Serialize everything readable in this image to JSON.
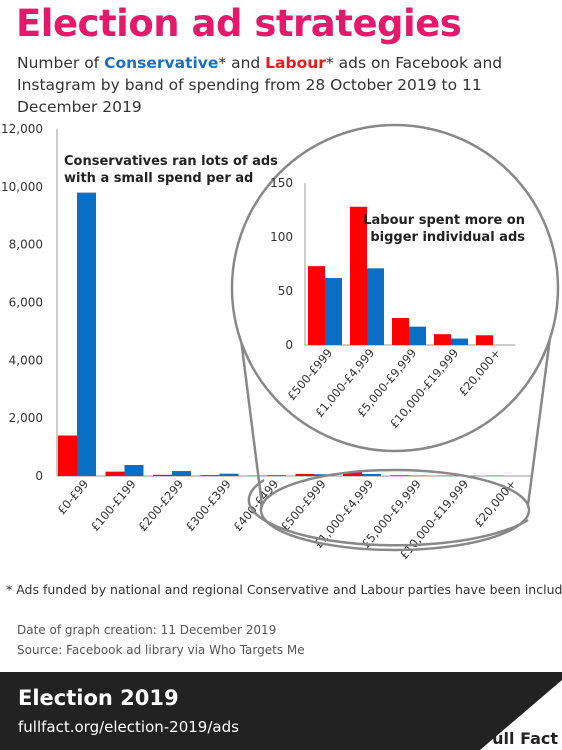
{
  "title": "Election ad strategies",
  "subtitle": {
    "pre": "Number of ",
    "conservative": "Conservative",
    "mid": "* and ",
    "labour": "Labour",
    "post": "* ads on Facebook and Instagram by band of spending from 28 October 2019 to 11 December 2019"
  },
  "colors": {
    "labour": "#ff0000",
    "conservative": "#0a6fc2",
    "title": "#e6186b",
    "footer": "#222222"
  },
  "footnote": "* Ads funded by national and regional Conservative and Labour parties have been included",
  "date_created": "Date of graph creation: 11 December 2019",
  "source": "Source: Facebook ad library via Who Targets Me",
  "footer": {
    "title": "Election 2019",
    "url": "fullfact.org/election-2019/ads",
    "logo": "Full Fact"
  },
  "chart_data": [
    {
      "type": "bar",
      "categories": [
        "£0-£99",
        "£100-£199",
        "£200-£299",
        "£300-£399",
        "£400-£499",
        "£500-£999",
        "£1,000-£4,999",
        "£5,000-£9,999",
        "£10,000-£19,999",
        "£20,000+"
      ],
      "series": [
        {
          "name": "Labour",
          "color": "#ff0000",
          "values": [
            1400,
            150,
            40,
            30,
            10,
            73,
            128,
            25,
            10,
            9
          ]
        },
        {
          "name": "Conservative",
          "color": "#0a6fc2",
          "values": [
            9800,
            380,
            170,
            80,
            30,
            62,
            71,
            17,
            6,
            0
          ]
        }
      ],
      "ylim": [
        0,
        12000
      ],
      "yticks": [
        "0",
        "2,000",
        "4,000",
        "6,000",
        "8,000",
        "10,000",
        "12,000"
      ],
      "annotation": "Conservatives ran lots of ads with a small spend per ad"
    },
    {
      "type": "bar",
      "categories": [
        "£500-£999",
        "£1,000-£4,999",
        "£5,000-£9,999",
        "£10,000-£19,999",
        "£20,000+"
      ],
      "series": [
        {
          "name": "Labour",
          "color": "#ff0000",
          "values": [
            73,
            128,
            25,
            10,
            9
          ]
        },
        {
          "name": "Conservative",
          "color": "#0a6fc2",
          "values": [
            62,
            71,
            17,
            6,
            0
          ]
        }
      ],
      "ylim": [
        0,
        150
      ],
      "yticks": [
        "0",
        "50",
        "100",
        "150"
      ],
      "annotation": "Labour spent more on bigger individual ads"
    }
  ]
}
